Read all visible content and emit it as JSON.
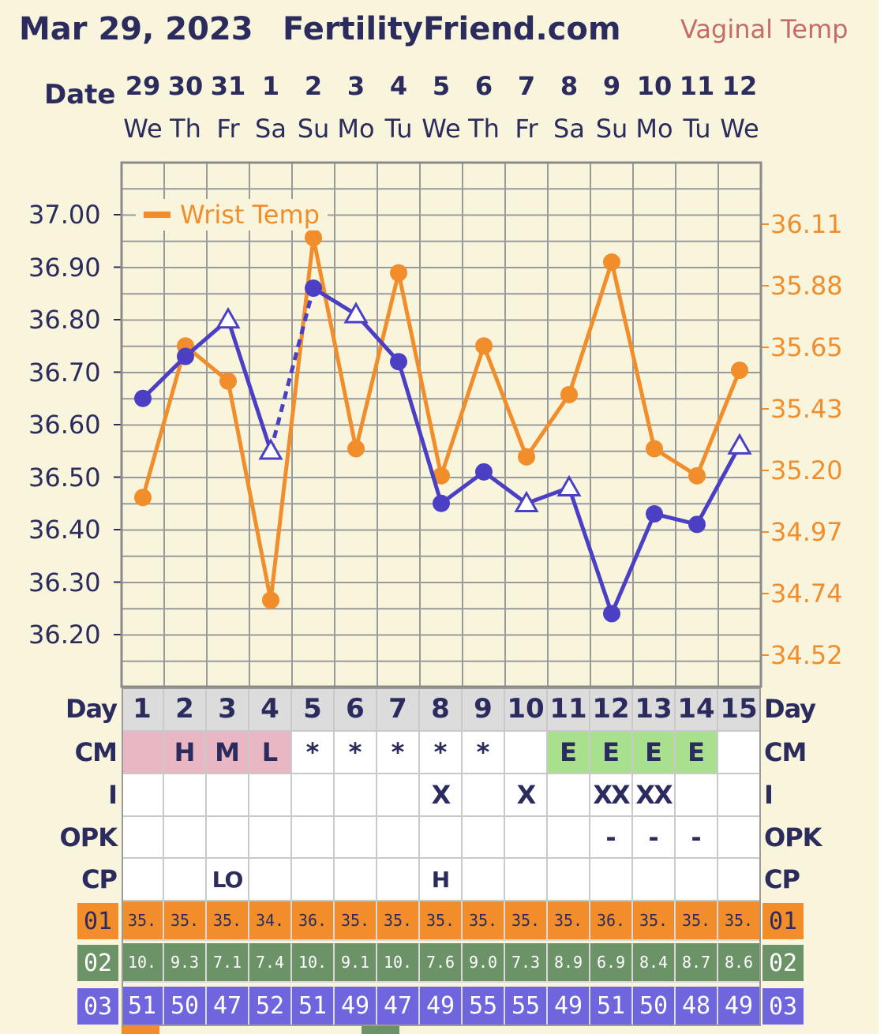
{
  "header": {
    "date": "Mar 29, 2023",
    "site": "FertilityFriend.com",
    "temp_mode": "Vaginal Temp"
  },
  "columns": {
    "date_label": "Date",
    "dates": [
      "29",
      "30",
      "31",
      "1",
      "2",
      "3",
      "4",
      "5",
      "6",
      "7",
      "8",
      "9",
      "10",
      "11",
      "12"
    ],
    "weekdays": [
      "We",
      "Th",
      "Fr",
      "Sa",
      "Su",
      "Mo",
      "Tu",
      "We",
      "Th",
      "Fr",
      "Sa",
      "Su",
      "Mo",
      "Tu",
      "We"
    ]
  },
  "chart_data": {
    "type": "line",
    "left_axis": {
      "ticks": [
        "37.00",
        "36.90",
        "36.80",
        "36.70",
        "36.60",
        "36.50",
        "36.40",
        "36.30",
        "36.20"
      ],
      "range": [
        36.15,
        37.05
      ]
    },
    "right_axis": {
      "ticks": [
        "36.11",
        "35.88",
        "35.65",
        "35.43",
        "35.20",
        "34.97",
        "34.74",
        "34.52"
      ]
    },
    "legend": [
      "Wrist Temp"
    ],
    "series": [
      {
        "name": "Vaginal Temp",
        "color": "#4b3fc4",
        "axis": "left",
        "values": [
          36.65,
          36.73,
          36.8,
          36.55,
          36.86,
          36.81,
          36.72,
          36.45,
          36.51,
          36.45,
          36.48,
          36.24,
          36.43,
          36.41,
          36.56
        ],
        "markers": [
          "dot",
          "dot",
          "open-triangle",
          "open-triangle",
          "dot",
          "open-triangle",
          "dot",
          "dot",
          "dot",
          "open-triangle",
          "open-triangle",
          "dot",
          "dot",
          "dot",
          "open-triangle"
        ],
        "breaks_after": [
          3
        ],
        "dashed_after": [
          3
        ]
      },
      {
        "name": "Wrist Temp",
        "color": "#f18d2b",
        "axis": "right",
        "values": [
          35.1,
          35.66,
          35.53,
          34.72,
          36.06,
          35.28,
          35.93,
          35.18,
          35.66,
          35.25,
          35.48,
          35.97,
          35.28,
          35.18,
          35.57
        ]
      }
    ],
    "grid": true
  },
  "rows": {
    "day": {
      "label": "Day",
      "values": [
        "1",
        "2",
        "3",
        "4",
        "5",
        "6",
        "7",
        "8",
        "9",
        "10",
        "11",
        "12",
        "13",
        "14",
        "15"
      ]
    },
    "cm": {
      "label": "CM",
      "values": [
        "",
        "H",
        "M",
        "L",
        "*",
        "*",
        "*",
        "*",
        "*",
        "",
        "E",
        "E",
        "E",
        "E",
        ""
      ],
      "menstrual_color": "#e9b7c4",
      "egg_white_color": "#a8e08d"
    },
    "intercourse": {
      "label": "I",
      "values": [
        "",
        "",
        "",
        "",
        "",
        "",
        "",
        "X",
        "",
        "X",
        "",
        "XX",
        "XX",
        "",
        ""
      ]
    },
    "opk": {
      "label": "OPK",
      "values": [
        "",
        "",
        "",
        "",
        "",
        "",
        "",
        "",
        "",
        "",
        "",
        "-",
        "-",
        "-",
        ""
      ]
    },
    "cp": {
      "label": "CP",
      "values": [
        "",
        "",
        "LO",
        "",
        "",
        "",
        "",
        "H",
        "",
        "",
        "",
        "",
        "",
        "",
        ""
      ]
    },
    "obs1": {
      "label": "01",
      "color": "#f18d2b",
      "values": [
        "35.",
        "35.",
        "35.",
        "34.",
        "36.",
        "35.",
        "35.",
        "35.",
        "35.",
        "35.",
        "35.",
        "36.",
        "35.",
        "35.",
        "35."
      ]
    },
    "obs2": {
      "label": "02",
      "color": "#6b9367",
      "values": [
        "10.",
        "9.3",
        "7.1",
        "7.4",
        "10.",
        "9.1",
        "10.",
        "7.6",
        "9.0",
        "7.3",
        "8.9",
        "6.9",
        "8.4",
        "8.7",
        "8.6"
      ]
    },
    "obs3": {
      "label": "03",
      "color": "#6f66dd",
      "values": [
        "51",
        "50",
        "47",
        "52",
        "51",
        "49",
        "47",
        "49",
        "55",
        "55",
        "49",
        "51",
        "50",
        "48",
        "49"
      ]
    }
  }
}
